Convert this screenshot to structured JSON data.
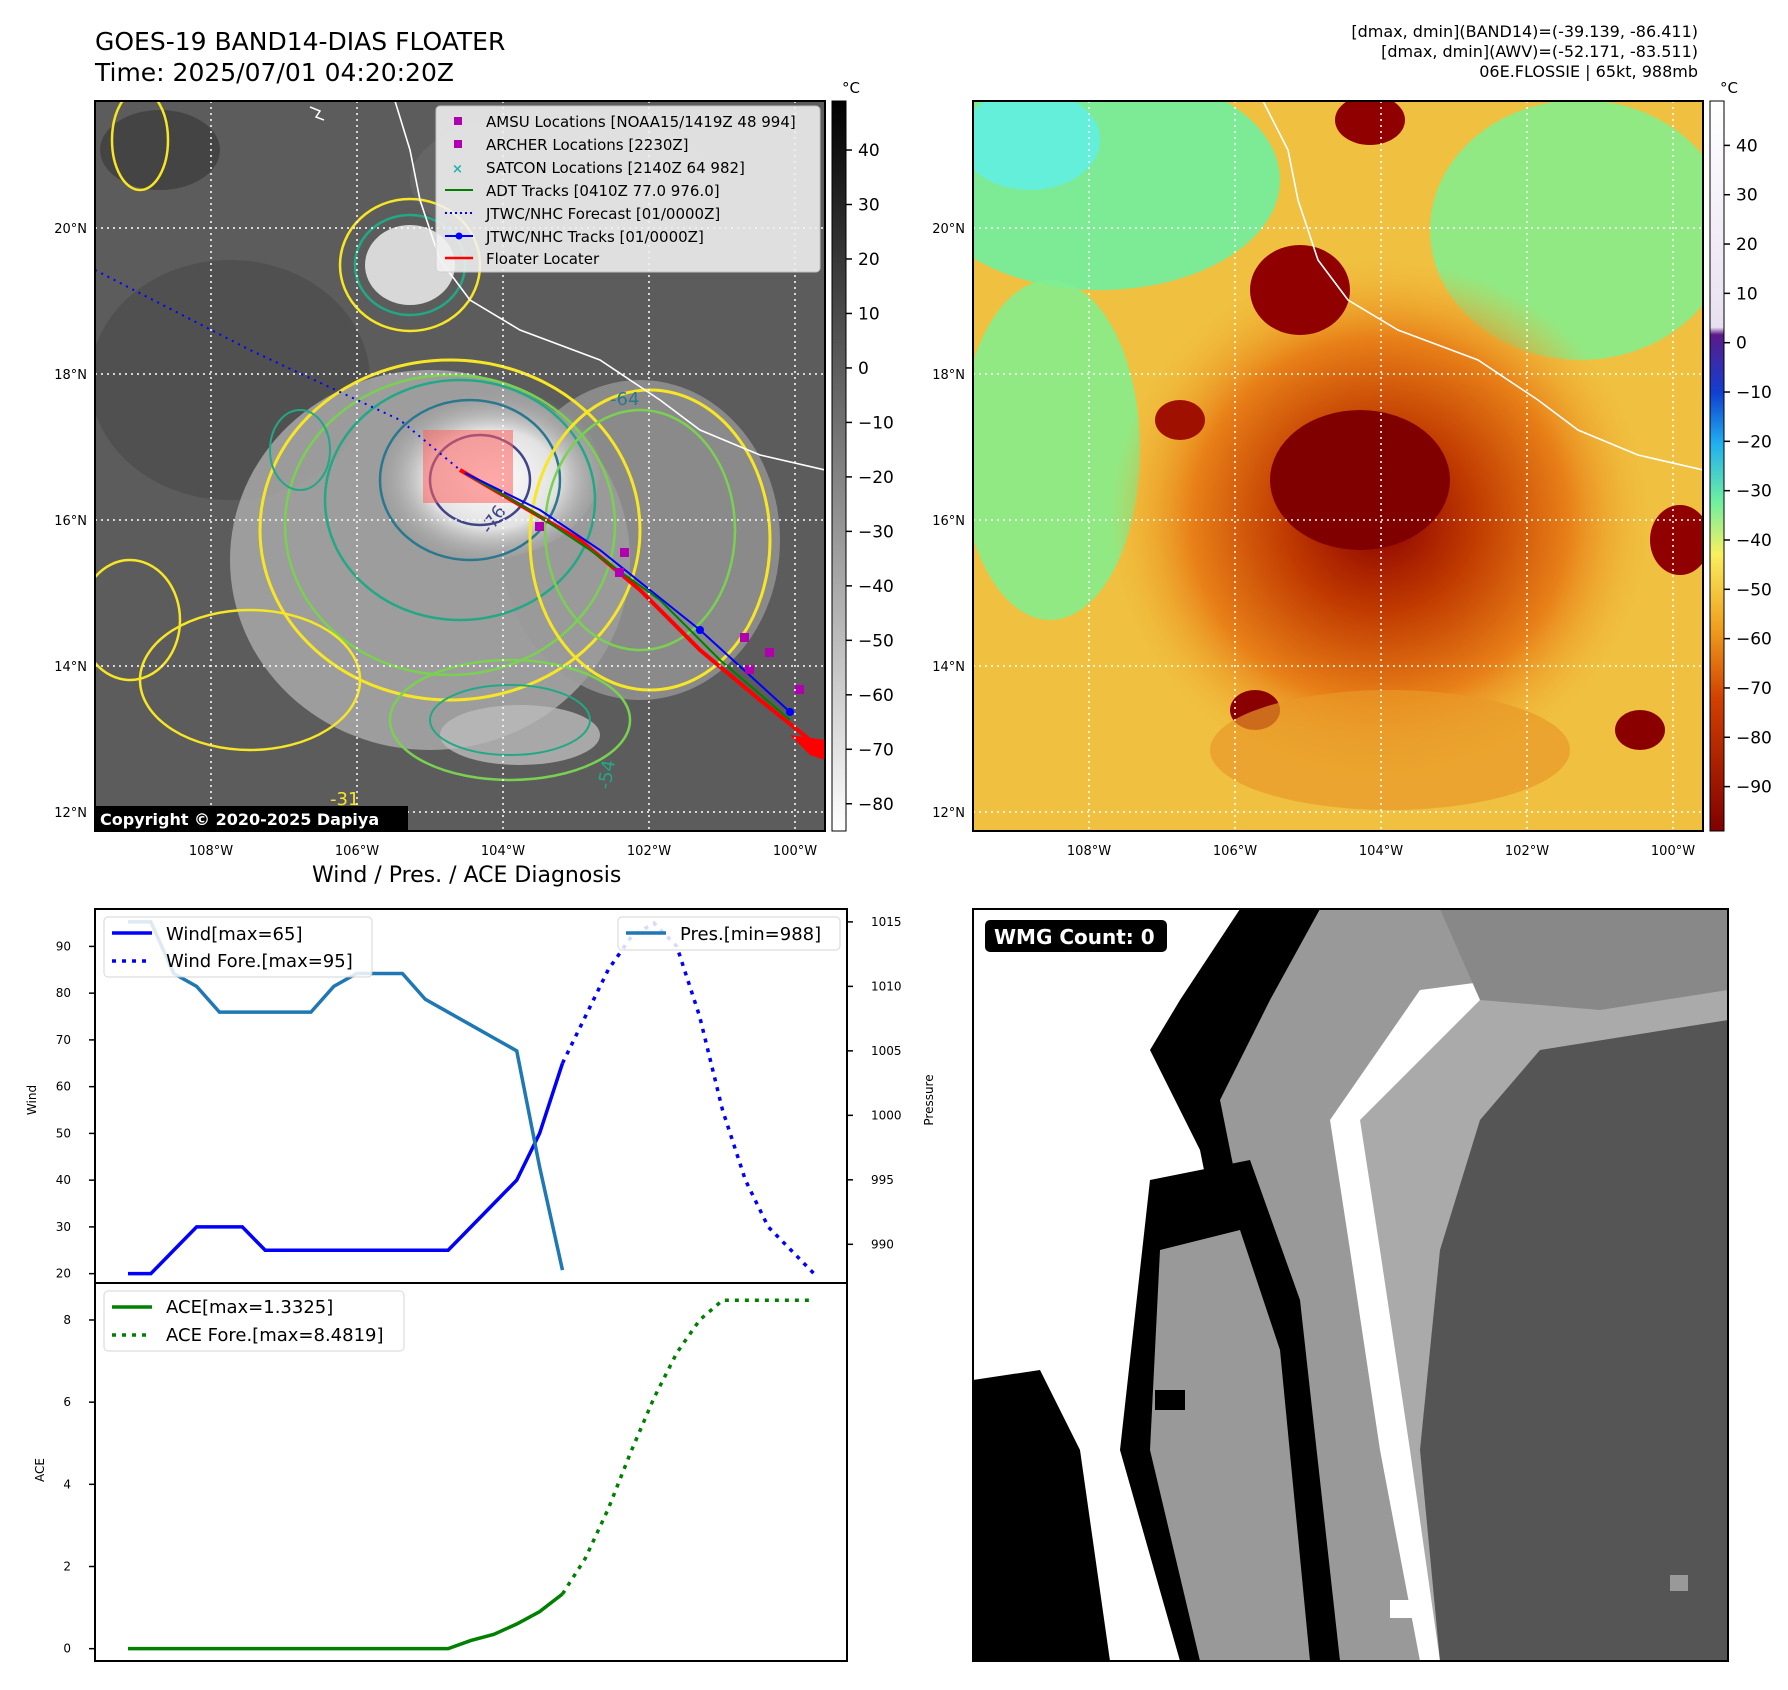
{
  "header": {
    "title_line1": "GOES-19 BAND14-DIAS FLOATER",
    "title_line2": "Time: 2025/07/01 04:20:20Z",
    "info_line1": "[dmax, dmin](BAND14)=(-39.139, -86.411)",
    "info_line2": "[dmax, dmin](AWV)=(-52.171, -83.511)",
    "info_line3": "06E.FLOSSIE | 65kt, 988mb"
  },
  "map_axes": {
    "lat_ticks": [
      "20°N",
      "18°N",
      "16°N",
      "14°N",
      "12°N"
    ],
    "lon_ticks": [
      "108°W",
      "106°W",
      "104°W",
      "102°W",
      "100°W"
    ],
    "lat_values": [
      20,
      18,
      16,
      14,
      12
    ],
    "lon_values": [
      -108,
      -106,
      -104,
      -102,
      -100
    ]
  },
  "ir_panel": {
    "copyright": "Copyright © 2020-2025 Dapiya",
    "colorbar_unit": "°C",
    "colorbar_ticks": [
      "40",
      "30",
      "20",
      "10",
      "0",
      "−10",
      "−20",
      "−30",
      "−40",
      "−50",
      "−60",
      "−70",
      "−80"
    ],
    "colorbar_values": [
      40,
      30,
      20,
      10,
      0,
      -10,
      -20,
      -30,
      -40,
      -50,
      -60,
      -70,
      -80
    ],
    "colorbar_range": [
      -85,
      49
    ],
    "legend": [
      {
        "label": "AMSU Locations [NOAA15/1419Z 48 994]",
        "marker": "square",
        "color": "#b000b0"
      },
      {
        "label": "ARCHER Locations [2230Z]",
        "marker": "square",
        "color": "#b000b0"
      },
      {
        "label": "SATCON Locations [2140Z 64 982]",
        "marker": "x",
        "color": "#20b2aa"
      },
      {
        "label": "ADT Tracks [0410Z 77.0 976.0]",
        "marker": "line",
        "color": "#008000"
      },
      {
        "label": "JTWC/NHC Forecast [01/0000Z]",
        "marker": "dotted",
        "color": "#0000ff"
      },
      {
        "label": "JTWC/NHC Tracks [01/0000Z]",
        "marker": "line-dot",
        "color": "#0000ff"
      },
      {
        "label": "Floater Locater",
        "marker": "line",
        "color": "#ff0000"
      }
    ],
    "contour_labels": [
      "-76",
      "-64",
      "-54",
      "-31"
    ]
  },
  "awv_panel": {
    "colorbar_unit": "°C",
    "colorbar_ticks": [
      "40",
      "30",
      "20",
      "10",
      "0",
      "−10",
      "−20",
      "−30",
      "−40",
      "−50",
      "−60",
      "−70",
      "−80",
      "−90"
    ],
    "colorbar_values": [
      40,
      30,
      20,
      10,
      0,
      -10,
      -20,
      -30,
      -40,
      -50,
      -60,
      -70,
      -80,
      -90
    ],
    "colorbar_range": [
      -99,
      49
    ]
  },
  "wmg_panel": {
    "badge": "WMG Count: 0"
  },
  "diagnosis": {
    "title": "Wind / Pres. / ACE Diagnosis",
    "wind_ylabel": "Wind",
    "pressure_ylabel": "Pressure",
    "ace_ylabel": "ACE",
    "legend_wind": "Wind[max=65]",
    "legend_wind_fore": "Wind Fore.[max=95]",
    "legend_pres": "Pres.[min=988]",
    "legend_ace": "ACE[max=1.3325]",
    "legend_ace_fore": "ACE Fore.[max=8.4819]"
  },
  "chart_data": [
    {
      "type": "line",
      "title": "Wind / Pres. / ACE Diagnosis",
      "ylabel": "Wind",
      "y2label": "Pressure",
      "ylim": [
        18,
        98
      ],
      "y2lim": [
        987,
        1016
      ],
      "yticks": [
        20,
        30,
        40,
        50,
        60,
        70,
        80,
        90
      ],
      "y2ticks": [
        990,
        995,
        1000,
        1005,
        1010,
        1015
      ],
      "x_index_range": [
        0,
        30
      ],
      "series": [
        {
          "name": "Wind[max=65]",
          "axis": "left",
          "style": "solid",
          "color": "#0000ff",
          "x": [
            0,
            1,
            2,
            3,
            4,
            5,
            6,
            7,
            8,
            9,
            10,
            11,
            12,
            13,
            14,
            15,
            16,
            17,
            18,
            19
          ],
          "values": [
            20,
            20,
            25,
            30,
            30,
            30,
            25,
            25,
            25,
            25,
            25,
            25,
            25,
            25,
            25,
            30,
            35,
            40,
            50,
            65
          ]
        },
        {
          "name": "Wind Fore.[max=95]",
          "axis": "left",
          "style": "dotted",
          "color": "#0000ff",
          "x": [
            19,
            20,
            21,
            22,
            23,
            24,
            25,
            26,
            27,
            28,
            29,
            30
          ],
          "values": [
            65,
            75,
            85,
            92,
            95,
            90,
            75,
            55,
            40,
            30,
            25,
            20
          ]
        },
        {
          "name": "Pres.[min=988]",
          "axis": "right",
          "style": "solid",
          "color": "#1f77b4",
          "x": [
            0,
            1,
            2,
            3,
            4,
            5,
            6,
            7,
            8,
            9,
            10,
            11,
            12,
            13,
            14,
            15,
            16,
            17,
            18,
            19
          ],
          "values": [
            1015,
            1015,
            1011,
            1010,
            1008,
            1008,
            1008,
            1008,
            1008,
            1010,
            1011,
            1011,
            1011,
            1009,
            1008,
            1007,
            1006,
            1005,
            996,
            988
          ]
        }
      ]
    },
    {
      "type": "line",
      "ylabel": "ACE",
      "ylim": [
        -0.3,
        8.9
      ],
      "yticks": [
        0,
        2,
        4,
        6,
        8
      ],
      "x_index_range": [
        0,
        30
      ],
      "series": [
        {
          "name": "ACE[max=1.3325]",
          "style": "solid",
          "color": "#008000",
          "x": [
            0,
            14,
            15,
            16,
            17,
            18,
            19
          ],
          "values": [
            0,
            0,
            0.2,
            0.35,
            0.6,
            0.9,
            1.33
          ]
        },
        {
          "name": "ACE Fore.[max=8.4819]",
          "style": "dotted",
          "color": "#008000",
          "x": [
            19,
            20,
            21,
            22,
            23,
            24,
            25,
            26,
            27,
            28,
            29,
            30
          ],
          "values": [
            1.33,
            2.2,
            3.4,
            4.8,
            6.1,
            7.2,
            8.0,
            8.48,
            8.48,
            8.48,
            8.48,
            8.48
          ]
        }
      ]
    }
  ]
}
